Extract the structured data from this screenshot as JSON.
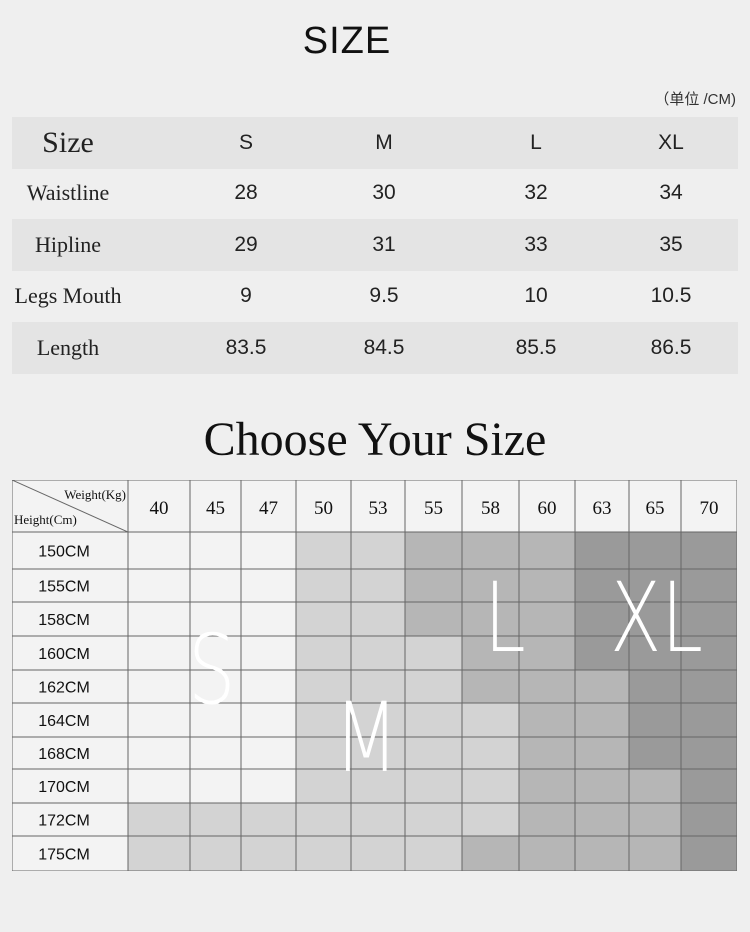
{
  "title": "SIZE",
  "unit_note": "（单位 /CM)",
  "size_table": {
    "header": [
      "Size",
      "S",
      "M",
      "L",
      "XL"
    ],
    "rows": [
      {
        "label": "Waistline",
        "values": [
          "28",
          "30",
          "32",
          "34"
        ]
      },
      {
        "label": "Hipline",
        "values": [
          "29",
          "31",
          "33",
          "35"
        ]
      },
      {
        "label": "Legs Mouth",
        "values": [
          "9",
          "9.5",
          "10",
          "10.5"
        ]
      },
      {
        "label": "Length",
        "values": [
          "83.5",
          "84.5",
          "85.5",
          "86.5"
        ]
      }
    ]
  },
  "chooser": {
    "title": "Choose Your Size",
    "weight_label": "Weight(Kg)",
    "height_label": "Height(Cm)",
    "weights": [
      "40",
      "45",
      "47",
      "50",
      "53",
      "55",
      "58",
      "60",
      "63",
      "65",
      "70"
    ],
    "heights": [
      "150CM",
      "155CM",
      "158CM",
      "160CM",
      "162CM",
      "164CM",
      "168CM",
      "170CM",
      "172CM",
      "175CM"
    ],
    "size_levels": [
      "S",
      "M",
      "L",
      "XL"
    ],
    "level_colors": [
      "#f3f3f3",
      "#d3d3d3",
      "#b6b6b6",
      "#9a9a9a"
    ],
    "matrix": [
      [
        0,
        0,
        0,
        1,
        1,
        2,
        2,
        2,
        3,
        3,
        3
      ],
      [
        0,
        0,
        0,
        1,
        1,
        2,
        2,
        2,
        3,
        3,
        3
      ],
      [
        0,
        0,
        0,
        1,
        1,
        2,
        2,
        2,
        3,
        3,
        3
      ],
      [
        0,
        0,
        0,
        1,
        1,
        1,
        2,
        2,
        3,
        3,
        3
      ],
      [
        0,
        0,
        0,
        1,
        1,
        1,
        2,
        2,
        2,
        3,
        3
      ],
      [
        0,
        0,
        0,
        1,
        1,
        1,
        1,
        2,
        2,
        3,
        3
      ],
      [
        0,
        0,
        0,
        1,
        1,
        1,
        1,
        2,
        2,
        3,
        3
      ],
      [
        0,
        0,
        0,
        1,
        1,
        1,
        1,
        2,
        2,
        2,
        3
      ],
      [
        1,
        1,
        1,
        1,
        1,
        1,
        1,
        2,
        2,
        2,
        3
      ],
      [
        1,
        1,
        1,
        1,
        1,
        1,
        2,
        2,
        2,
        2,
        3
      ]
    ]
  }
}
